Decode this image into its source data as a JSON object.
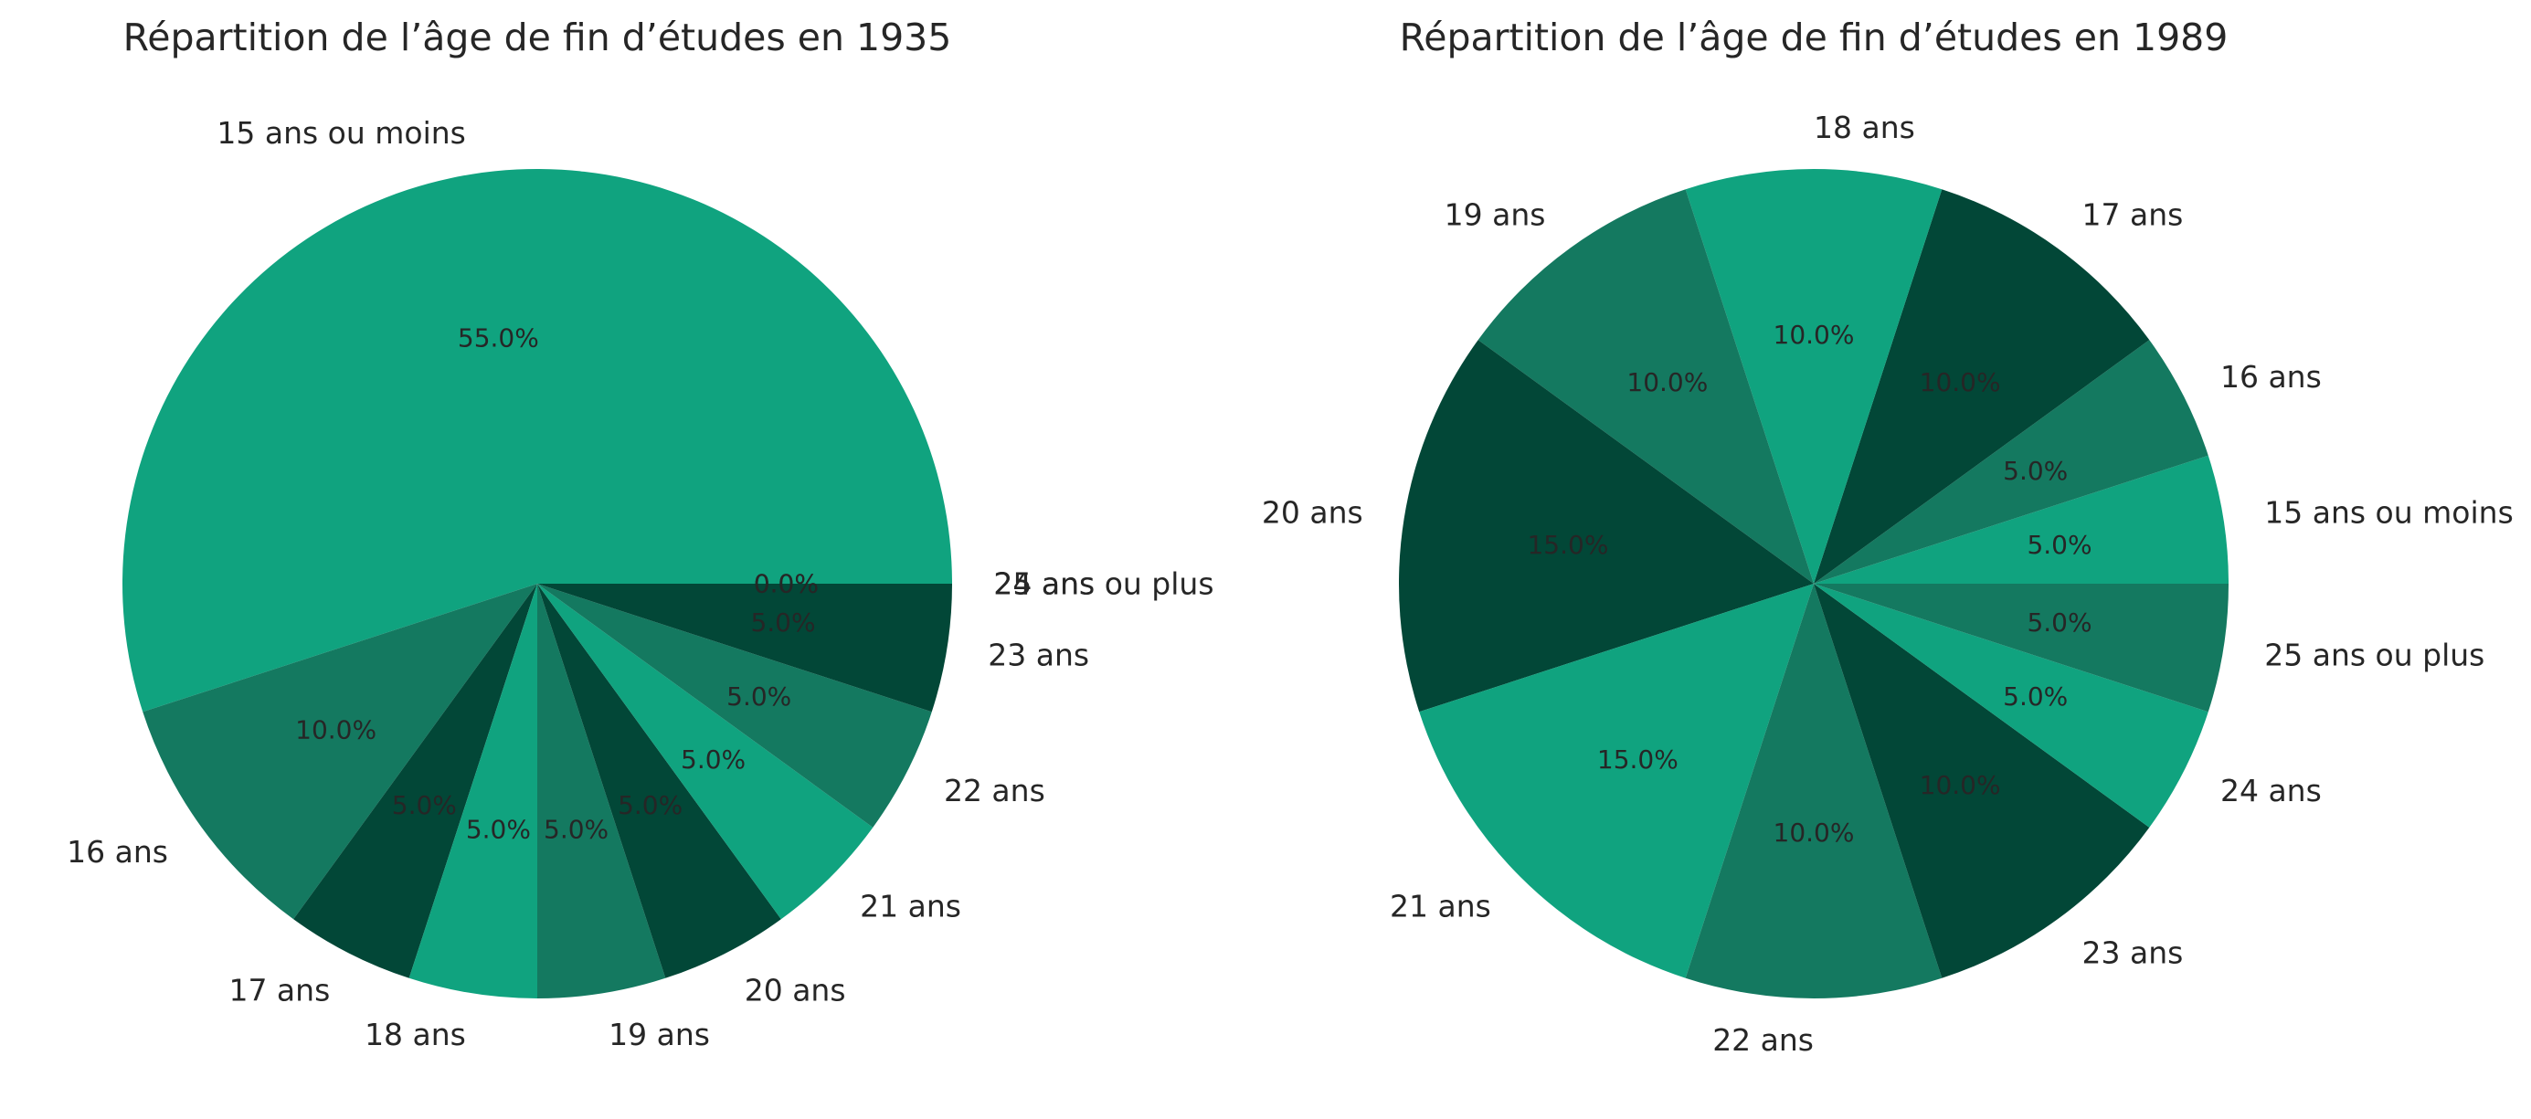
{
  "chart_data": [
    {
      "type": "pie",
      "title": "Répartition de l’âge de fin d’études en 1935",
      "categories": [
        "15 ans ou moins",
        "16 ans",
        "17 ans",
        "18 ans",
        "19 ans",
        "20 ans",
        "21 ans",
        "22 ans",
        "23 ans",
        "24 ans",
        "25 ans ou plus"
      ],
      "values": [
        55,
        10,
        5,
        5,
        5,
        5,
        5,
        5,
        5,
        0,
        0
      ],
      "pct_labels": [
        "55.0%",
        "10.0%",
        "5.0%",
        "5.0%",
        "5.0%",
        "5.0%",
        "5.0%",
        "5.0%",
        "5.0%",
        "0.0%",
        "0.0%"
      ],
      "start_angle_deg": 0,
      "direction": "counterclockwise",
      "colors": [
        "#10a37f",
        "#147960",
        "#024737"
      ],
      "legend": "none"
    },
    {
      "type": "pie",
      "title": "Répartition de l’âge de fin d’études en 1989",
      "categories": [
        "15 ans ou moins",
        "16 ans",
        "17 ans",
        "18 ans",
        "19 ans",
        "20 ans",
        "21 ans",
        "22 ans",
        "23 ans",
        "24 ans",
        "25 ans ou plus"
      ],
      "values": [
        5,
        5,
        10,
        10,
        10,
        15,
        15,
        10,
        10,
        5,
        5
      ],
      "pct_labels": [
        "5.0%",
        "5.0%",
        "10.0%",
        "10.0%",
        "10.0%",
        "15.0%",
        "15.0%",
        "10.0%",
        "10.0%",
        "5.0%",
        "5.0%"
      ],
      "start_angle_deg": 0,
      "direction": "counterclockwise",
      "colors": [
        "#10a37f",
        "#147960",
        "#024737"
      ],
      "legend": "none"
    }
  ]
}
